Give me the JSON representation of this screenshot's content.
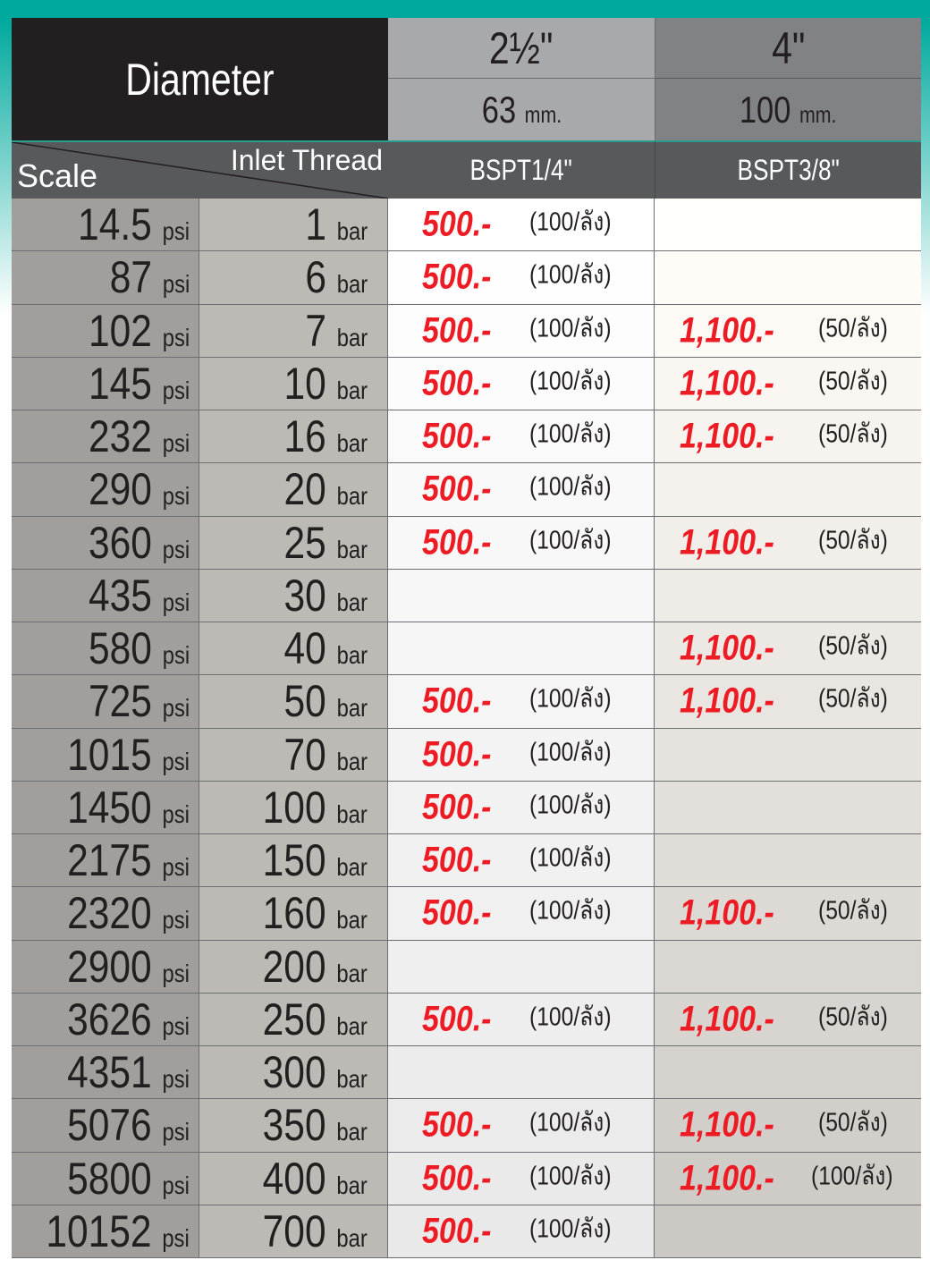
{
  "header": {
    "diameter": "Diameter",
    "sizes": [
      {
        "inch": "2½\"",
        "mm": "63",
        "unit": "mm."
      },
      {
        "inch": "4\"",
        "mm": "100",
        "unit": "mm."
      }
    ],
    "scale": "Scale",
    "inlet": "Inlet Thread",
    "threads": [
      "BSPT1/4\"",
      "BSPT3/8\""
    ]
  },
  "units": {
    "psi": "psi",
    "bar": "bar"
  },
  "colors": {
    "teal": "#00a99d",
    "price": "#ed1c24"
  },
  "rows": [
    {
      "psi": "14.5",
      "bar": "1",
      "p1": "500.-",
      "k1": "(100/ลัง)",
      "p2": "",
      "k2": ""
    },
    {
      "psi": "87",
      "bar": "6",
      "p1": "500.-",
      "k1": "(100/ลัง)",
      "p2": "",
      "k2": ""
    },
    {
      "psi": "102",
      "bar": "7",
      "p1": "500.-",
      "k1": "(100/ลัง)",
      "p2": "1,100.-",
      "k2": "(50/ลัง)"
    },
    {
      "psi": "145",
      "bar": "10",
      "p1": "500.-",
      "k1": "(100/ลัง)",
      "p2": "1,100.-",
      "k2": "(50/ลัง)"
    },
    {
      "psi": "232",
      "bar": "16",
      "p1": "500.-",
      "k1": "(100/ลัง)",
      "p2": "1,100.-",
      "k2": "(50/ลัง)"
    },
    {
      "psi": "290",
      "bar": "20",
      "p1": "500.-",
      "k1": "(100/ลัง)",
      "p2": "",
      "k2": ""
    },
    {
      "psi": "360",
      "bar": "25",
      "p1": "500.-",
      "k1": "(100/ลัง)",
      "p2": "1,100.-",
      "k2": "(50/ลัง)"
    },
    {
      "psi": "435",
      "bar": "30",
      "p1": "",
      "k1": "",
      "p2": "",
      "k2": ""
    },
    {
      "psi": "580",
      "bar": "40",
      "p1": "",
      "k1": "",
      "p2": "1,100.-",
      "k2": "(50/ลัง)"
    },
    {
      "psi": "725",
      "bar": "50",
      "p1": "500.-",
      "k1": "(100/ลัง)",
      "p2": "1,100.-",
      "k2": "(50/ลัง)"
    },
    {
      "psi": "1015",
      "bar": "70",
      "p1": "500.-",
      "k1": "(100/ลัง)",
      "p2": "",
      "k2": ""
    },
    {
      "psi": "1450",
      "bar": "100",
      "p1": "500.-",
      "k1": "(100/ลัง)",
      "p2": "",
      "k2": ""
    },
    {
      "psi": "2175",
      "bar": "150",
      "p1": "500.-",
      "k1": "(100/ลัง)",
      "p2": "",
      "k2": ""
    },
    {
      "psi": "2320",
      "bar": "160",
      "p1": "500.-",
      "k1": "(100/ลัง)",
      "p2": "1,100.-",
      "k2": "(50/ลัง)"
    },
    {
      "psi": "2900",
      "bar": "200",
      "p1": "",
      "k1": "",
      "p2": "",
      "k2": ""
    },
    {
      "psi": "3626",
      "bar": "250",
      "p1": "500.-",
      "k1": "(100/ลัง)",
      "p2": "1,100.-",
      "k2": "(50/ลัง)"
    },
    {
      "psi": "4351",
      "bar": "300",
      "p1": "",
      "k1": "",
      "p2": "",
      "k2": ""
    },
    {
      "psi": "5076",
      "bar": "350",
      "p1": "500.-",
      "k1": "(100/ลัง)",
      "p2": "1,100.-",
      "k2": "(50/ลัง)"
    },
    {
      "psi": "5800",
      "bar": "400",
      "p1": "500.-",
      "k1": "(100/ลัง)",
      "p2": "1,100.-",
      "k2": "(100/ลัง)"
    },
    {
      "psi": "10152",
      "bar": "700",
      "p1": "500.-",
      "k1": "(100/ลัง)",
      "p2": "",
      "k2": ""
    }
  ]
}
